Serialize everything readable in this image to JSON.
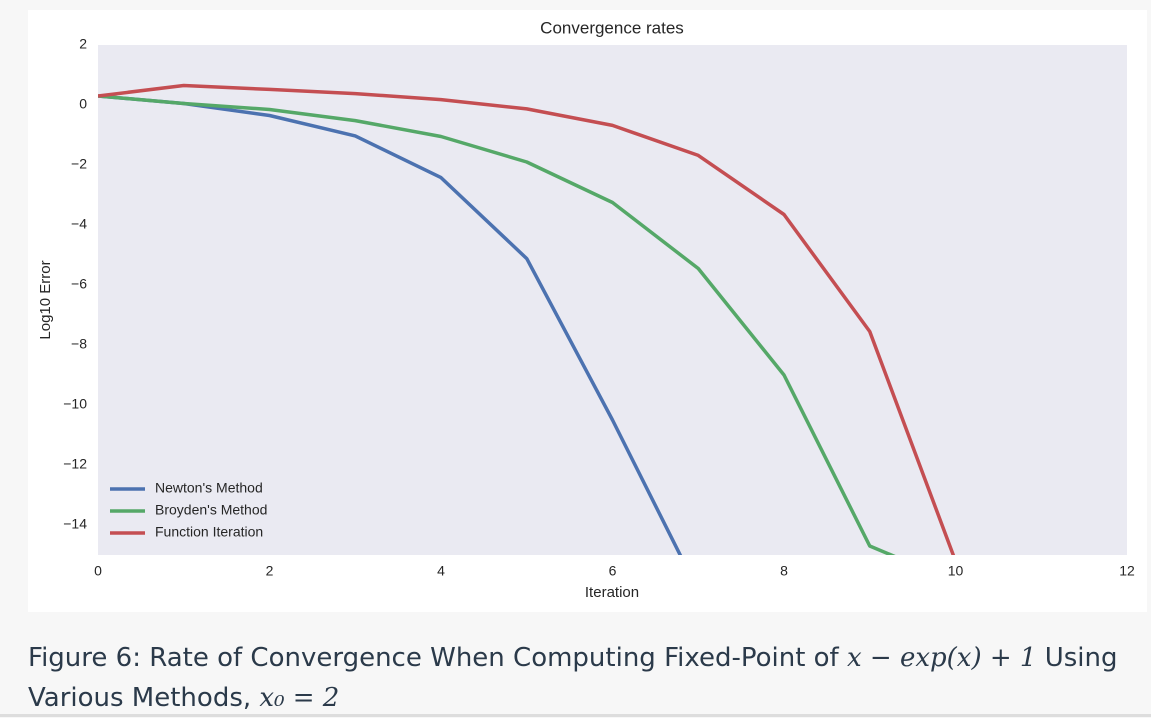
{
  "chart_data": {
    "type": "line",
    "title": "Convergence rates",
    "x_label": "Iteration",
    "y_label": "Log10 Error",
    "x": [
      0,
      1,
      2,
      3,
      4,
      5,
      6,
      7,
      8,
      9,
      10
    ],
    "series": [
      {
        "name": "Newton's Method",
        "color": "#4c72b0",
        "values": [
          0.3,
          0.05,
          -0.35,
          -1.03,
          -2.42,
          -5.12,
          -10.5,
          -16.2,
          null,
          null,
          null
        ]
      },
      {
        "name": "Broyden's Method",
        "color": "#55a868",
        "values": [
          0.3,
          0.05,
          -0.15,
          -0.52,
          -1.05,
          -1.9,
          -3.25,
          -5.45,
          -9.0,
          -14.7,
          -15.9
        ]
      },
      {
        "name": "Function Iteration",
        "color": "#c44e52",
        "values": [
          0.3,
          0.65,
          0.52,
          0.38,
          0.18,
          -0.13,
          -0.68,
          -1.68,
          -3.65,
          -7.55,
          -15.2
        ]
      }
    ],
    "xlim": [
      0,
      12
    ],
    "xticks": [
      0,
      2,
      4,
      6,
      8,
      10,
      12
    ],
    "ylim": [
      -15,
      2
    ],
    "yticks": [
      {
        "value": -14,
        "label": "−14"
      },
      {
        "value": -12,
        "label": "−12"
      },
      {
        "value": -10,
        "label": "−10"
      },
      {
        "value": -8,
        "label": "−8"
      },
      {
        "value": -6,
        "label": "−6"
      },
      {
        "value": -4,
        "label": "−4"
      },
      {
        "value": -2,
        "label": "−2"
      },
      0,
      2
    ],
    "grid": false,
    "legend": "lower left"
  },
  "caption": {
    "label": "Figure 6:",
    "text": "Rate of Convergence When Computing Fixed-Point of",
    "math1": "x − exp(x) + 1",
    "text2": "Using Various Methods,",
    "math2": "x₀ = 2"
  }
}
